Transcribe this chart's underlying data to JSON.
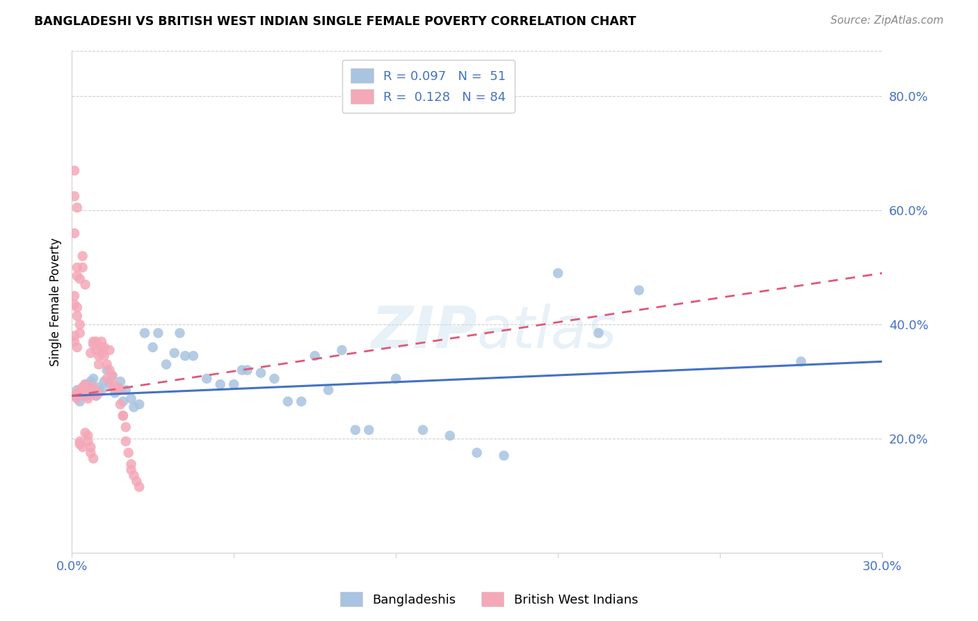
{
  "title": "BANGLADESHI VS BRITISH WEST INDIAN SINGLE FEMALE POVERTY CORRELATION CHART",
  "source": "Source: ZipAtlas.com",
  "ylabel": "Single Female Poverty",
  "right_yticks": [
    "20.0%",
    "40.0%",
    "60.0%",
    "80.0%"
  ],
  "right_ytick_vals": [
    0.2,
    0.4,
    0.6,
    0.8
  ],
  "xlim": [
    0.0,
    0.3
  ],
  "ylim": [
    0.0,
    0.88
  ],
  "bangladeshi_color": "#a8c4e0",
  "bwi_color": "#f4a8b8",
  "trendline_bangladeshi_color": "#4472c4",
  "trendline_bwi_color": "#e05878",
  "watermark": "ZIPatlas",
  "trendline_b_x0": 0.0,
  "trendline_b_y0": 0.275,
  "trendline_b_x1": 0.3,
  "trendline_b_y1": 0.335,
  "trendline_w_x0": 0.0,
  "trendline_w_y0": 0.275,
  "trendline_w_x1": 0.3,
  "trendline_w_y1": 0.49,
  "bangladeshi_points": [
    [
      0.002,
      0.285
    ],
    [
      0.003,
      0.265
    ],
    [
      0.005,
      0.295
    ],
    [
      0.006,
      0.28
    ],
    [
      0.007,
      0.3
    ],
    [
      0.008,
      0.305
    ],
    [
      0.009,
      0.275
    ],
    [
      0.01,
      0.29
    ],
    [
      0.011,
      0.285
    ],
    [
      0.012,
      0.3
    ],
    [
      0.013,
      0.32
    ],
    [
      0.014,
      0.295
    ],
    [
      0.015,
      0.31
    ],
    [
      0.016,
      0.28
    ],
    [
      0.018,
      0.3
    ],
    [
      0.019,
      0.265
    ],
    [
      0.02,
      0.285
    ],
    [
      0.022,
      0.27
    ],
    [
      0.023,
      0.255
    ],
    [
      0.025,
      0.26
    ],
    [
      0.027,
      0.385
    ],
    [
      0.03,
      0.36
    ],
    [
      0.032,
      0.385
    ],
    [
      0.035,
      0.33
    ],
    [
      0.038,
      0.35
    ],
    [
      0.04,
      0.385
    ],
    [
      0.042,
      0.345
    ],
    [
      0.045,
      0.345
    ],
    [
      0.05,
      0.305
    ],
    [
      0.055,
      0.295
    ],
    [
      0.06,
      0.295
    ],
    [
      0.063,
      0.32
    ],
    [
      0.065,
      0.32
    ],
    [
      0.07,
      0.315
    ],
    [
      0.075,
      0.305
    ],
    [
      0.08,
      0.265
    ],
    [
      0.085,
      0.265
    ],
    [
      0.09,
      0.345
    ],
    [
      0.095,
      0.285
    ],
    [
      0.1,
      0.355
    ],
    [
      0.105,
      0.215
    ],
    [
      0.11,
      0.215
    ],
    [
      0.12,
      0.305
    ],
    [
      0.13,
      0.215
    ],
    [
      0.14,
      0.205
    ],
    [
      0.15,
      0.175
    ],
    [
      0.16,
      0.17
    ],
    [
      0.18,
      0.49
    ],
    [
      0.195,
      0.385
    ],
    [
      0.21,
      0.46
    ],
    [
      0.27,
      0.335
    ]
  ],
  "bwi_points": [
    [
      0.001,
      0.275
    ],
    [
      0.002,
      0.28
    ],
    [
      0.002,
      0.27
    ],
    [
      0.003,
      0.275
    ],
    [
      0.003,
      0.285
    ],
    [
      0.004,
      0.29
    ],
    [
      0.004,
      0.28
    ],
    [
      0.005,
      0.285
    ],
    [
      0.005,
      0.275
    ],
    [
      0.005,
      0.295
    ],
    [
      0.006,
      0.27
    ],
    [
      0.006,
      0.285
    ],
    [
      0.006,
      0.275
    ],
    [
      0.007,
      0.29
    ],
    [
      0.007,
      0.285
    ],
    [
      0.007,
      0.35
    ],
    [
      0.008,
      0.28
    ],
    [
      0.008,
      0.365
    ],
    [
      0.008,
      0.29
    ],
    [
      0.009,
      0.355
    ],
    [
      0.009,
      0.275
    ],
    [
      0.009,
      0.37
    ],
    [
      0.01,
      0.28
    ],
    [
      0.01,
      0.345
    ],
    [
      0.01,
      0.33
    ],
    [
      0.011,
      0.35
    ],
    [
      0.011,
      0.36
    ],
    [
      0.011,
      0.37
    ],
    [
      0.012,
      0.345
    ],
    [
      0.012,
      0.36
    ],
    [
      0.013,
      0.33
    ],
    [
      0.013,
      0.305
    ],
    [
      0.014,
      0.355
    ],
    [
      0.014,
      0.32
    ],
    [
      0.015,
      0.31
    ],
    [
      0.015,
      0.295
    ],
    [
      0.016,
      0.29
    ],
    [
      0.016,
      0.29
    ],
    [
      0.017,
      0.29
    ],
    [
      0.017,
      0.285
    ],
    [
      0.018,
      0.285
    ],
    [
      0.018,
      0.26
    ],
    [
      0.019,
      0.24
    ],
    [
      0.019,
      0.24
    ],
    [
      0.02,
      0.22
    ],
    [
      0.02,
      0.195
    ],
    [
      0.021,
      0.175
    ],
    [
      0.022,
      0.155
    ],
    [
      0.022,
      0.145
    ],
    [
      0.023,
      0.135
    ],
    [
      0.024,
      0.125
    ],
    [
      0.025,
      0.115
    ],
    [
      0.003,
      0.48
    ],
    [
      0.004,
      0.52
    ],
    [
      0.004,
      0.5
    ],
    [
      0.005,
      0.47
    ],
    [
      0.001,
      0.56
    ],
    [
      0.002,
      0.5
    ],
    [
      0.002,
      0.485
    ],
    [
      0.001,
      0.625
    ],
    [
      0.002,
      0.605
    ],
    [
      0.005,
      0.21
    ],
    [
      0.006,
      0.195
    ],
    [
      0.006,
      0.205
    ],
    [
      0.007,
      0.185
    ],
    [
      0.007,
      0.175
    ],
    [
      0.008,
      0.165
    ],
    [
      0.001,
      0.45
    ],
    [
      0.001,
      0.435
    ],
    [
      0.002,
      0.43
    ],
    [
      0.002,
      0.415
    ],
    [
      0.003,
      0.4
    ],
    [
      0.003,
      0.385
    ],
    [
      0.001,
      0.38
    ],
    [
      0.001,
      0.37
    ],
    [
      0.002,
      0.36
    ],
    [
      0.003,
      0.195
    ],
    [
      0.003,
      0.19
    ],
    [
      0.004,
      0.185
    ],
    [
      0.001,
      0.67
    ],
    [
      0.008,
      0.37
    ]
  ]
}
